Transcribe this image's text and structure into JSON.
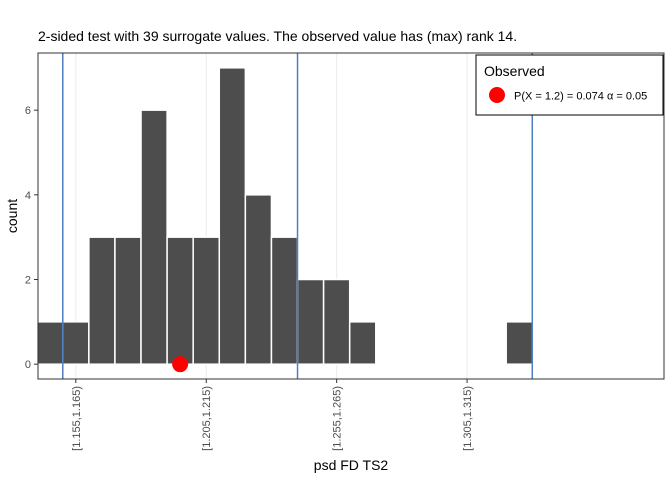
{
  "chart_data": {
    "type": "bar",
    "title": "2-sided test with 39 surrogate values. The observed value has (max) rank 14.",
    "xlabel": "psd FD TS2",
    "ylabel": "count",
    "xlim": [
      1.1455,
      1.3855
    ],
    "ylim": [
      -0.35,
      7.35
    ],
    "y_ticks": [
      0,
      2,
      4,
      6
    ],
    "x_ticks": [
      {
        "value": 1.16,
        "label": "[1.155,1.165)"
      },
      {
        "value": 1.21,
        "label": "[1.205,1.215)"
      },
      {
        "value": 1.26,
        "label": "[1.255,1.265)"
      },
      {
        "value": 1.31,
        "label": "[1.305,1.315)"
      }
    ],
    "grid": true,
    "bin_width": 0.01,
    "bins": [
      {
        "center": 1.15,
        "count": 1
      },
      {
        "center": 1.16,
        "count": 1
      },
      {
        "center": 1.17,
        "count": 3
      },
      {
        "center": 1.18,
        "count": 3
      },
      {
        "center": 1.19,
        "count": 6
      },
      {
        "center": 1.2,
        "count": 3
      },
      {
        "center": 1.21,
        "count": 3
      },
      {
        "center": 1.22,
        "count": 7
      },
      {
        "center": 1.23,
        "count": 4
      },
      {
        "center": 1.24,
        "count": 3
      },
      {
        "center": 1.25,
        "count": 2
      },
      {
        "center": 1.26,
        "count": 2
      },
      {
        "center": 1.27,
        "count": 1
      },
      {
        "center": 1.33,
        "count": 1
      }
    ],
    "vlines": [
      1.155,
      1.245,
      1.335
    ],
    "observed": {
      "x": 1.2,
      "y": 0
    },
    "legend": {
      "title": "Observed",
      "label": "P(X = 1.2) = 0.074  α = 0.05",
      "placement": "top-right"
    },
    "colors": {
      "bar": "#4d4d4d",
      "bar_edge": "#ffffff",
      "vline": "#4f7fbf",
      "point": "#ff0000",
      "grid": "#ebebeb",
      "panel_border": "#333333"
    }
  }
}
